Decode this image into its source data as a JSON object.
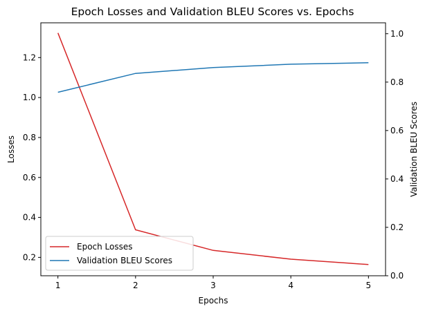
{
  "chart_data": {
    "type": "line",
    "title": "Epoch Losses and Validation BLEU Scores vs. Epochs",
    "xlabel": "Epochs",
    "ylabel_left": "Losses",
    "ylabel_right": "Validation BLEU Scores",
    "x": [
      1,
      2,
      3,
      4,
      5
    ],
    "xticks": [
      "1",
      "2",
      "3",
      "4",
      "5"
    ],
    "xlim": [
      0.78,
      5.22
    ],
    "ylim_left": [
      0.108,
      1.374
    ],
    "ylim_right": [
      0,
      1.045
    ],
    "yticks_left": [
      "0.2",
      "0.4",
      "0.6",
      "0.8",
      "1.0",
      "1.2"
    ],
    "yticks_right": [
      "0.0",
      "0.2",
      "0.4",
      "0.6",
      "0.8",
      "1.0"
    ],
    "grid": false,
    "legend_position": "lower-left",
    "series": [
      {
        "name": "Epoch Losses",
        "axis": "left",
        "color": "#d62728",
        "values": [
          1.323,
          0.338,
          0.235,
          0.191,
          0.164
        ]
      },
      {
        "name": "Validation BLEU Scores",
        "axis": "right",
        "color": "#1f77b4",
        "values": [
          0.758,
          0.836,
          0.86,
          0.874,
          0.88
        ]
      }
    ]
  }
}
